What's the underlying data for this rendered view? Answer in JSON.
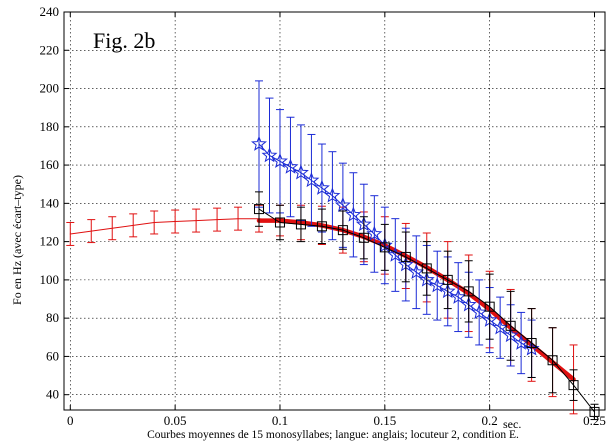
{
  "chart_data": {
    "type": "line",
    "title": "Fig. 2b",
    "ylabel": "Fo en Hz (avec écart–type)",
    "xlabel": "Courbes moyennes de 15 monosyllabes; langue: anglais; locuteur 2, condition E.",
    "x_unit_label": "sec.",
    "xlim": [
      -0.003,
      0.255
    ],
    "ylim": [
      32,
      240
    ],
    "grid": true,
    "x_ticks": [
      0,
      0.05,
      0.1,
      0.15,
      0.2,
      0.25
    ],
    "x_tick_labels": [
      "0",
      "0.05",
      "0.1",
      "0.15",
      "0.2",
      "0.25"
    ],
    "y_ticks": [
      40,
      60,
      80,
      100,
      120,
      140,
      160,
      180,
      200,
      220,
      240
    ],
    "y_tick_labels": [
      "40",
      "60",
      "80",
      "100",
      "120",
      "140",
      "160",
      "180",
      "200",
      "220",
      "240"
    ],
    "series": [
      {
        "color": "#e01010",
        "marker": "none",
        "x": [
          0,
          0.01,
          0.02,
          0.03,
          0.04,
          0.05,
          0.06,
          0.07,
          0.08,
          0.09,
          0.1,
          0.11,
          0.12,
          0.13,
          0.14,
          0.15,
          0.16,
          0.17,
          0.18,
          0.19,
          0.2,
          0.21,
          0.22,
          0.23,
          0.24
        ],
        "y": [
          124,
          125.5,
          127,
          128.5,
          130,
          130.5,
          131,
          131.5,
          132,
          132,
          131,
          130,
          128.5,
          126,
          122.5,
          118,
          112.5,
          106.5,
          100,
          93,
          84.5,
          75,
          66,
          57,
          48
        ],
        "err": [
          6,
          6,
          6,
          6,
          6,
          6,
          6,
          6,
          6,
          7,
          8,
          9,
          10,
          12,
          13,
          15,
          17,
          18,
          20,
          20,
          20,
          20,
          19,
          18,
          18
        ]
      },
      {
        "color": "#e01010",
        "marker": "none",
        "x": [
          0.09,
          0.1,
          0.11,
          0.12,
          0.13,
          0.14,
          0.15,
          0.16,
          0.17,
          0.18,
          0.19,
          0.2,
          0.21,
          0.22,
          0.23,
          0.24
        ],
        "y": [
          131,
          131,
          130,
          128.5,
          126,
          122.5,
          118,
          112.5,
          106.5,
          100,
          93,
          84.5,
          75,
          66,
          57,
          48
        ],
        "err": []
      },
      {
        "color": "#1b2bd6",
        "marker": "star",
        "x": [
          0.09,
          0.095,
          0.1,
          0.105,
          0.11,
          0.115,
          0.12,
          0.125,
          0.13,
          0.135,
          0.14,
          0.145,
          0.15,
          0.155,
          0.16,
          0.165,
          0.17,
          0.175,
          0.18,
          0.185,
          0.19,
          0.195,
          0.2,
          0.205,
          0.21,
          0.215,
          0.22
        ],
        "y": [
          171,
          165,
          162,
          159,
          156,
          152,
          148,
          144,
          139,
          134,
          129,
          124,
          118,
          113,
          108,
          104,
          100,
          97,
          94,
          91,
          87,
          83,
          79,
          75,
          71,
          67,
          64
        ],
        "err": [
          33,
          30,
          27,
          26,
          25,
          24,
          23,
          23,
          22,
          22,
          21,
          20,
          20,
          19,
          19,
          19,
          18,
          18,
          18,
          18,
          17,
          17,
          17,
          16,
          16,
          16,
          15
        ]
      },
      {
        "color": "#000000",
        "marker": "square",
        "x": [
          0.09,
          0.1,
          0.11,
          0.12,
          0.13,
          0.14,
          0.15,
          0.16,
          0.17,
          0.18,
          0.19,
          0.2,
          0.21,
          0.22,
          0.23,
          0.24,
          0.25
        ],
        "y": [
          137,
          130,
          129,
          128,
          126,
          122,
          117,
          112,
          106,
          100,
          94,
          86,
          76,
          67,
          58,
          45,
          31
        ],
        "err": [
          9,
          9,
          9,
          9,
          10,
          11,
          12,
          13,
          14,
          15,
          16,
          17,
          18,
          18,
          17,
          8,
          4
        ]
      }
    ]
  }
}
